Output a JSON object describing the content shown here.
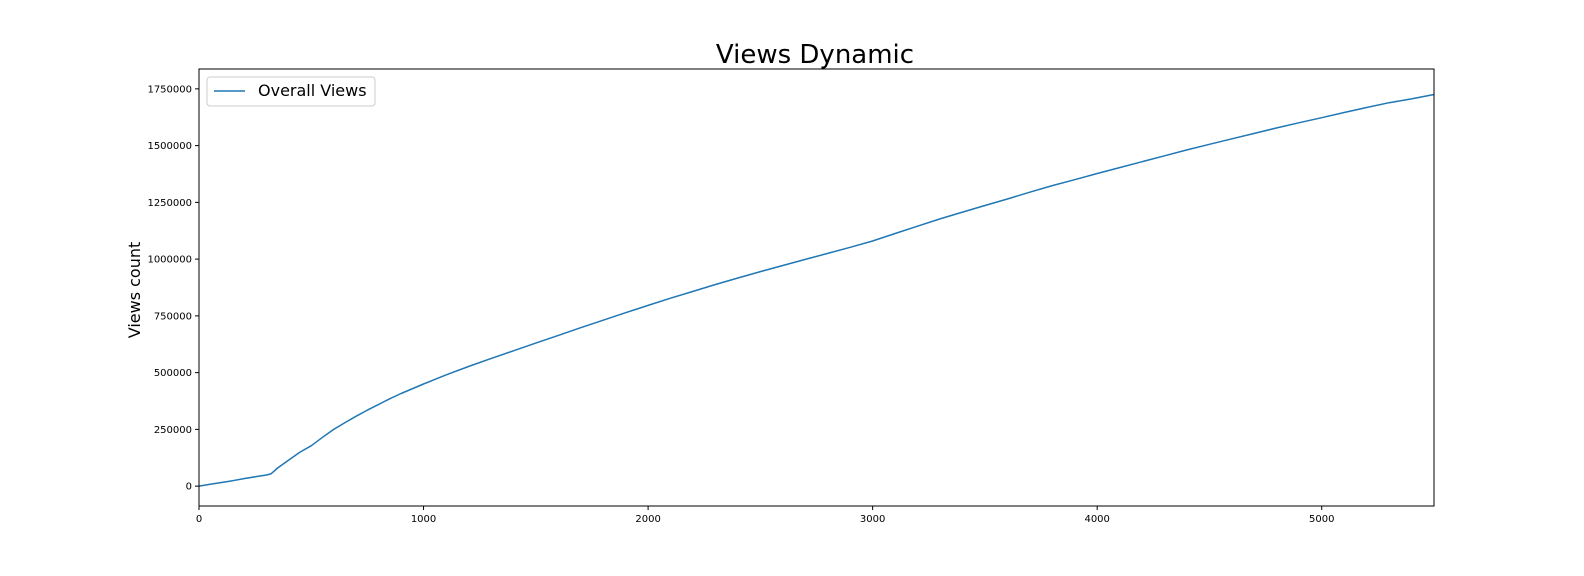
{
  "chart_data": {
    "type": "line",
    "title": "Views Dynamic",
    "xlabel": "",
    "ylabel": "Views count",
    "xlim": [
      0,
      5500
    ],
    "ylim": [
      -87500,
      1837500
    ],
    "xticks": [
      0,
      1000,
      2000,
      3000,
      4000,
      5000
    ],
    "yticks": [
      0,
      250000,
      500000,
      750000,
      1000000,
      1250000,
      1500000,
      1750000
    ],
    "grid": false,
    "legend_position": "top-left",
    "series": [
      {
        "name": "Overall Views",
        "color": "#1f77b4",
        "x": [
          0,
          50,
          100,
          150,
          200,
          250,
          300,
          320,
          350,
          400,
          450,
          500,
          530,
          560,
          600,
          650,
          700,
          750,
          800,
          850,
          900,
          1000,
          1100,
          1200,
          1300,
          1400,
          1500,
          1600,
          1700,
          1800,
          1900,
          2000,
          2100,
          2200,
          2300,
          2400,
          2500,
          2600,
          2700,
          2800,
          2900,
          3000,
          3100,
          3200,
          3300,
          3400,
          3500,
          3600,
          3700,
          3800,
          3900,
          4000,
          4100,
          4200,
          4300,
          4400,
          4500,
          4600,
          4700,
          4800,
          4900,
          5000,
          5100,
          5200,
          5300,
          5400,
          5500
        ],
        "y": [
          0,
          8000,
          16000,
          24000,
          33000,
          41000,
          49000,
          54000,
          80000,
          115000,
          150000,
          178000,
          200000,
          222000,
          250000,
          280000,
          308000,
          335000,
          360000,
          385000,
          408000,
          450000,
          490000,
          527000,
          562000,
          596000,
          630000,
          664000,
          698000,
          731000,
          764000,
          796000,
          828000,
          858000,
          888000,
          917000,
          945000,
          972000,
          999000,
          1025000,
          1052000,
          1080000,
          1113000,
          1145000,
          1177000,
          1207000,
          1236000,
          1265000,
          1295000,
          1324000,
          1350000,
          1377000,
          1403000,
          1429000,
          1455000,
          1481000,
          1506000,
          1530000,
          1554000,
          1578000,
          1601000,
          1623000,
          1646000,
          1668000,
          1689000,
          1706000,
          1725000
        ]
      }
    ]
  }
}
